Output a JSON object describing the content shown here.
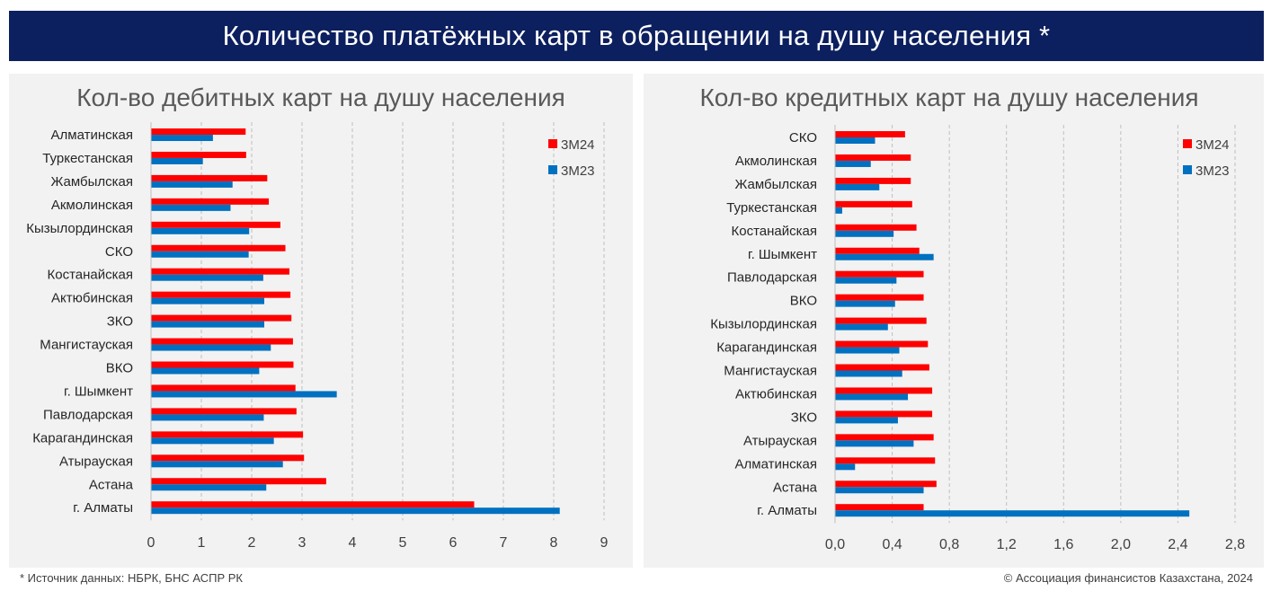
{
  "header": {
    "title": "Количество платёжных карт в обращении на душу населения *"
  },
  "colors": {
    "banner": "#0c1f5e",
    "series_3m24": "#ff0000",
    "series_3m23": "#0070c0",
    "panel": "#f2f2f2",
    "grid": "#bfbfbf"
  },
  "chart_data": [
    {
      "type": "bar",
      "orientation": "horizontal",
      "title": "Кол-во дебитных карт на душу населения",
      "categories": [
        "Алматинская",
        "Туркестанская",
        "Жамбылская",
        "Акмолинская",
        "Кызылординская",
        "СКО",
        "Костанайская",
        "Актюбинская",
        "ЗКО",
        "Мангистауская",
        "ВКО",
        "г. Шымкент",
        "Павлодарская",
        "Карагандинская",
        "Атырауская",
        "Астана",
        "г. Алматы"
      ],
      "series": [
        {
          "name": "3М24",
          "values": [
            1.88,
            1.89,
            2.31,
            2.34,
            2.57,
            2.67,
            2.75,
            2.77,
            2.79,
            2.82,
            2.83,
            2.87,
            2.89,
            3.02,
            3.04,
            3.48,
            6.42
          ]
        },
        {
          "name": "3М23",
          "values": [
            1.23,
            1.03,
            1.62,
            1.58,
            1.95,
            1.94,
            2.23,
            2.25,
            2.25,
            2.38,
            2.15,
            3.69,
            2.24,
            2.44,
            2.62,
            2.29,
            8.12
          ]
        }
      ],
      "xlim": [
        0,
        9
      ],
      "ticks": [
        "0",
        "1",
        "2",
        "3",
        "4",
        "5",
        "6",
        "7",
        "8",
        "9"
      ],
      "tick_values": [
        0,
        1,
        2,
        3,
        4,
        5,
        6,
        7,
        8,
        9
      ],
      "grid": true,
      "legend": "top-right"
    },
    {
      "type": "bar",
      "orientation": "horizontal",
      "title": "Кол-во кредитных карт на душу населения",
      "categories": [
        "СКО",
        "Акмолинская",
        "Жамбылская",
        "Туркестанская",
        "Костанайская",
        "г. Шымкент",
        "Павлодарская",
        "ВКО",
        "Кызылординская",
        "Карагандинская",
        "Мангистауская",
        "Актюбинская",
        "ЗКО",
        "Атырауская",
        "Алматинская",
        "Астана",
        "г. Алматы"
      ],
      "series": [
        {
          "name": "3М24",
          "values": [
            0.49,
            0.53,
            0.53,
            0.54,
            0.57,
            0.59,
            0.62,
            0.62,
            0.64,
            0.65,
            0.66,
            0.68,
            0.68,
            0.69,
            0.7,
            0.71,
            0.62
          ]
        },
        {
          "name": "3М23",
          "values": [
            0.28,
            0.25,
            0.31,
            0.05,
            0.41,
            0.69,
            0.43,
            0.42,
            0.37,
            0.45,
            0.47,
            0.51,
            0.44,
            0.55,
            0.14,
            0.62,
            2.48
          ]
        }
      ],
      "xlim": [
        0,
        2.8
      ],
      "ticks": [
        "0,0",
        "0,4",
        "0,8",
        "1,2",
        "1,6",
        "2,0",
        "2,4",
        "2,8"
      ],
      "tick_values": [
        0,
        0.4,
        0.8,
        1.2,
        1.6,
        2.0,
        2.4,
        2.8
      ],
      "grid": true,
      "legend": "top-right"
    }
  ],
  "footer": {
    "source": "* Источник данных: НБРК, БНС АСПР РК",
    "copyright": "© Ассоциация финансистов Казахстана, 2024"
  }
}
